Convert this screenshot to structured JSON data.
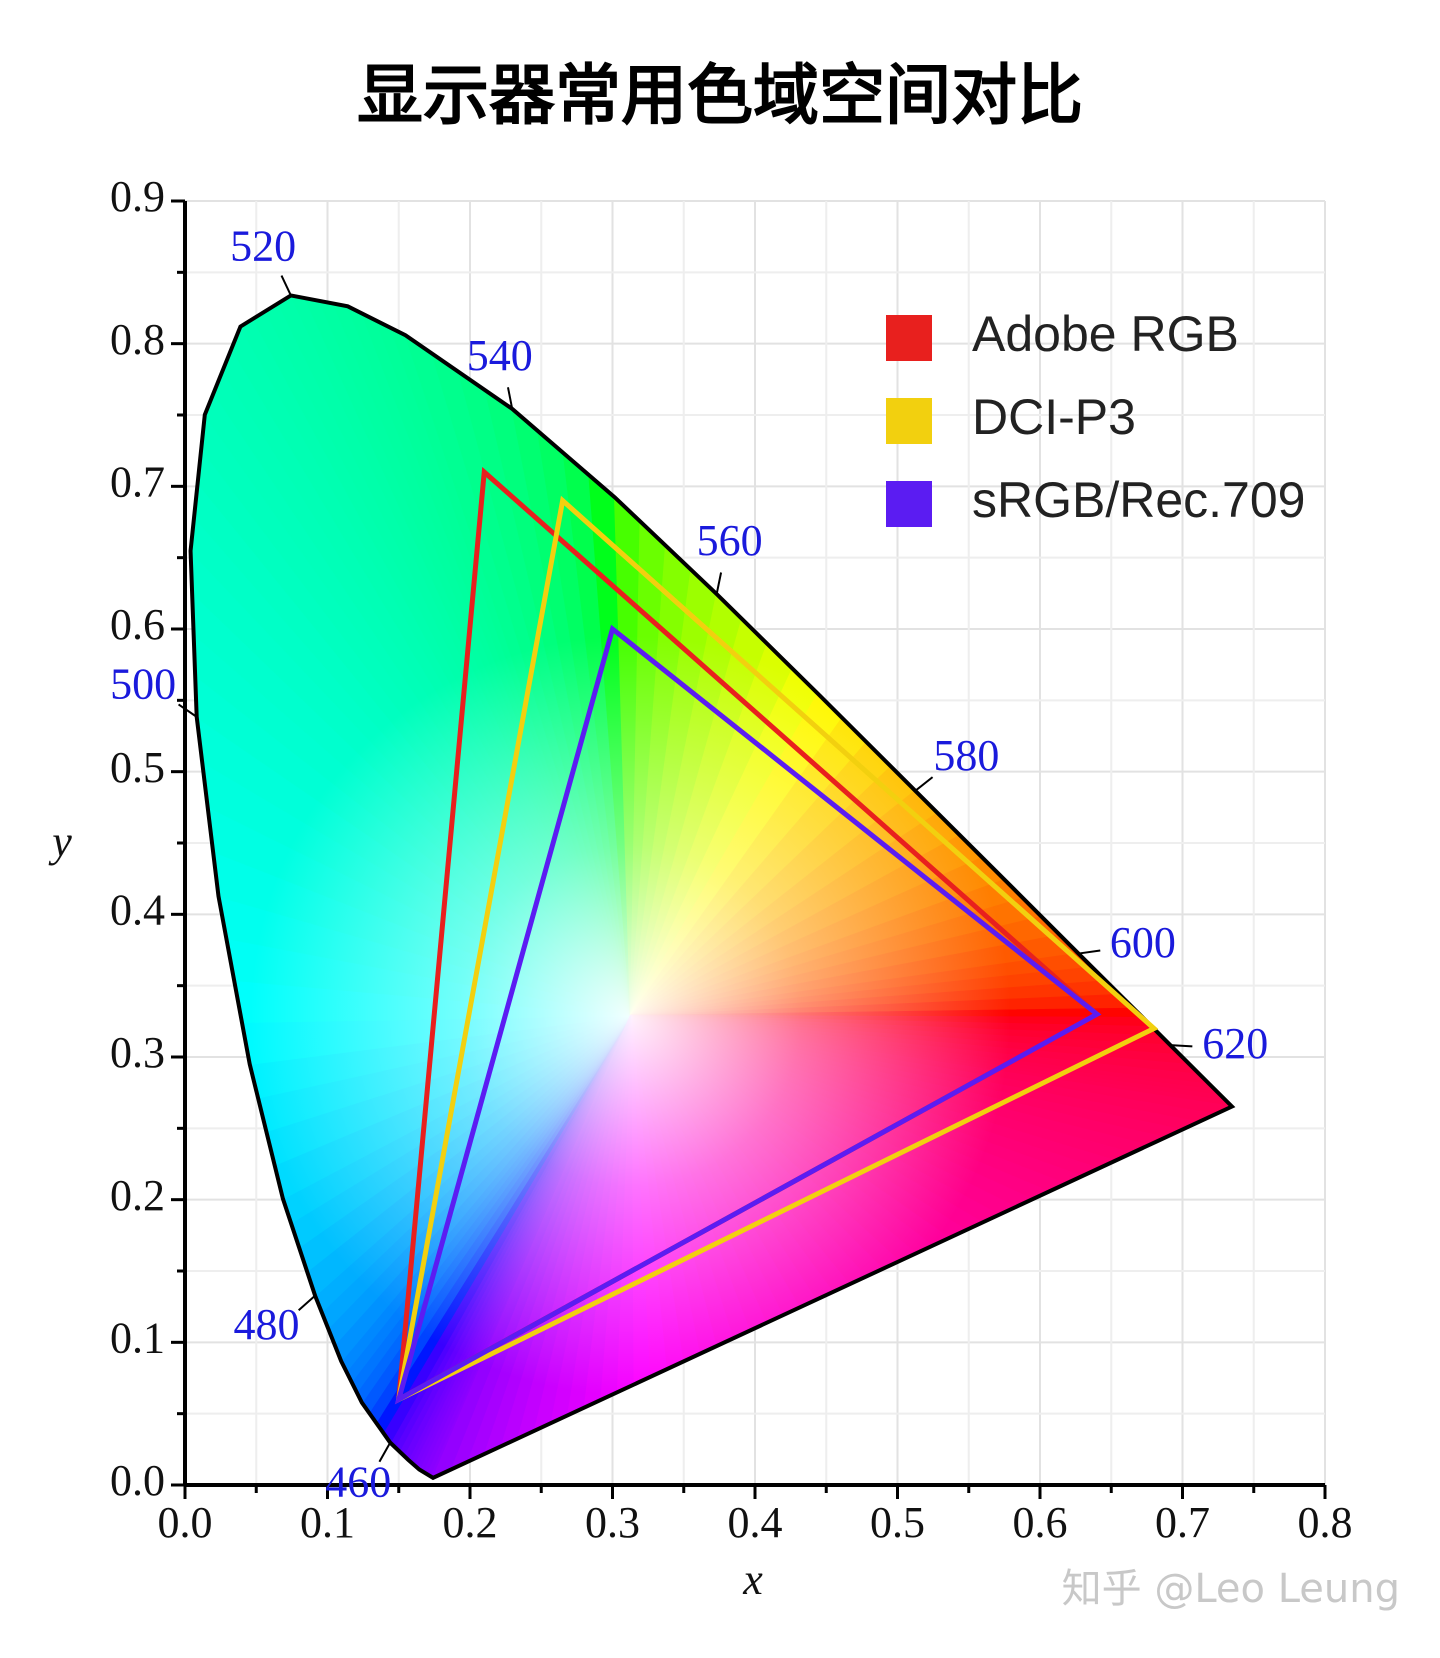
{
  "chart_data": {
    "type": "chromaticity",
    "title": "显示器常用色域空间对比",
    "x_label": "x",
    "y_label": "y",
    "xlim": [
      0,
      0.8
    ],
    "ylim": [
      0,
      0.9
    ],
    "xticks": [
      {
        "value": 0,
        "label": "0.0"
      },
      0.1,
      0.2,
      0.3,
      0.4,
      0.5,
      0.6,
      0.7,
      0.8
    ],
    "yticks": [
      {
        "value": 0,
        "label": "0.0"
      },
      0.1,
      0.2,
      0.3,
      0.4,
      0.5,
      0.6,
      0.7,
      0.8,
      0.9
    ],
    "grid": true,
    "locus": {
      "x": [
        0.1741,
        0.1644,
        0.1566,
        0.144,
        0.1241,
        0.1096,
        0.0913,
        0.0687,
        0.0454,
        0.0235,
        0.0082,
        0.0039,
        0.0139,
        0.0389,
        0.0743,
        0.1142,
        0.1547,
        0.2296,
        0.3016,
        0.3731,
        0.4441,
        0.5125,
        0.5752,
        0.627,
        0.6658,
        0.6915,
        0.719,
        0.7347
      ],
      "y": [
        0.005,
        0.0109,
        0.0177,
        0.0297,
        0.0578,
        0.0868,
        0.1327,
        0.2007,
        0.295,
        0.4127,
        0.5384,
        0.6548,
        0.7502,
        0.812,
        0.8338,
        0.8262,
        0.8059,
        0.7543,
        0.6923,
        0.6245,
        0.5547,
        0.4866,
        0.4242,
        0.3725,
        0.334,
        0.3083,
        0.2809,
        0.2653
      ]
    },
    "wavelength_labels": {
      "values": [
        460,
        480,
        500,
        520,
        540,
        560,
        580,
        600,
        620
      ],
      "x": [
        0.144,
        0.0913,
        0.0082,
        0.0743,
        0.2296,
        0.3731,
        0.5125,
        0.627,
        0.6915
      ],
      "y": [
        0.0297,
        0.1327,
        0.5384,
        0.8338,
        0.7543,
        0.6245,
        0.4866,
        0.3725,
        0.3083
      ]
    },
    "legend": "upper right",
    "series": [
      {
        "name": "Adobe RGB",
        "color": "#e8201e",
        "x": [
          0.64,
          0.21,
          0.15
        ],
        "y": [
          0.33,
          0.71,
          0.06
        ]
      },
      {
        "name": "DCI-P3",
        "color": "#f2d00f",
        "x": [
          0.68,
          0.265,
          0.15
        ],
        "y": [
          0.32,
          0.69,
          0.06
        ]
      },
      {
        "name": "sRGB/Rec.709",
        "color": "#5b1cf2",
        "x": [
          0.64,
          0.3,
          0.15
        ],
        "y": [
          0.33,
          0.6,
          0.06
        ]
      }
    ],
    "watermark": "知乎 @Leo Leung"
  }
}
